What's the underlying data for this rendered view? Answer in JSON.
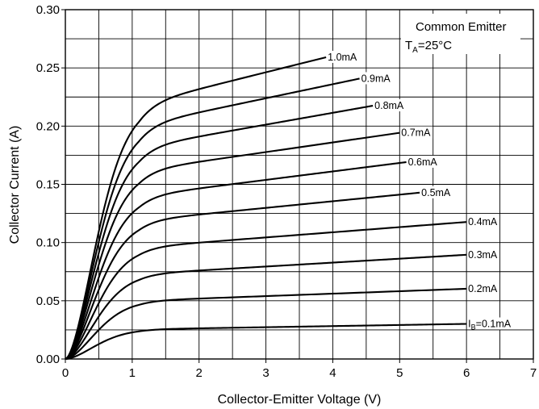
{
  "chart_data": {
    "type": "line",
    "xlabel": "Collector-Emitter Voltage (V)",
    "ylabel": "Collector Current (A)",
    "xlim": [
      0,
      7
    ],
    "ylim": [
      0,
      0.3
    ],
    "x_ticks": [
      "0",
      "1",
      "2",
      "3",
      "4",
      "5",
      "6",
      "7"
    ],
    "y_ticks": [
      "0.00",
      "0.05",
      "0.10",
      "0.15",
      "0.20",
      "0.25",
      "0.30"
    ],
    "grid": true,
    "annotation": {
      "line1": "Common Emitter",
      "line2_prefix": "T",
      "line2_sub": "A",
      "line2_suffix": "=25°C"
    },
    "series": [
      {
        "name": "IB=0.1mA",
        "label_prefix": "I",
        "label_sub": "B",
        "label_suffix": "=0.1mA",
        "sat": 0.0255,
        "x_end": 6.0,
        "y_end": 0.03
      },
      {
        "name": "0.2mA",
        "label": "0.2mA",
        "sat": 0.05,
        "x_end": 6.0,
        "y_end": 0.06
      },
      {
        "name": "0.3mA",
        "label": "0.3mA",
        "sat": 0.073,
        "x_end": 6.0,
        "y_end": 0.089
      },
      {
        "name": "0.4mA",
        "label": "0.4mA",
        "sat": 0.096,
        "x_end": 6.0,
        "y_end": 0.117
      },
      {
        "name": "0.5mA",
        "label": "0.5mA",
        "sat": 0.119,
        "x_end": 5.3,
        "y_end": 0.142
      },
      {
        "name": "0.6mA",
        "label": "0.6mA",
        "sat": 0.14,
        "x_end": 5.1,
        "y_end": 0.168
      },
      {
        "name": "0.7mA",
        "label": "0.7mA",
        "sat": 0.162,
        "x_end": 5.0,
        "y_end": 0.193
      },
      {
        "name": "0.8mA",
        "label": "0.8mA",
        "sat": 0.182,
        "x_end": 4.6,
        "y_end": 0.216
      },
      {
        "name": "0.9mA",
        "label": "0.9mA",
        "sat": 0.201,
        "x_end": 4.4,
        "y_end": 0.239
      },
      {
        "name": "1.0mA",
        "label": "1.0mA",
        "sat": 0.219,
        "x_end": 3.9,
        "y_end": 0.257
      }
    ]
  }
}
